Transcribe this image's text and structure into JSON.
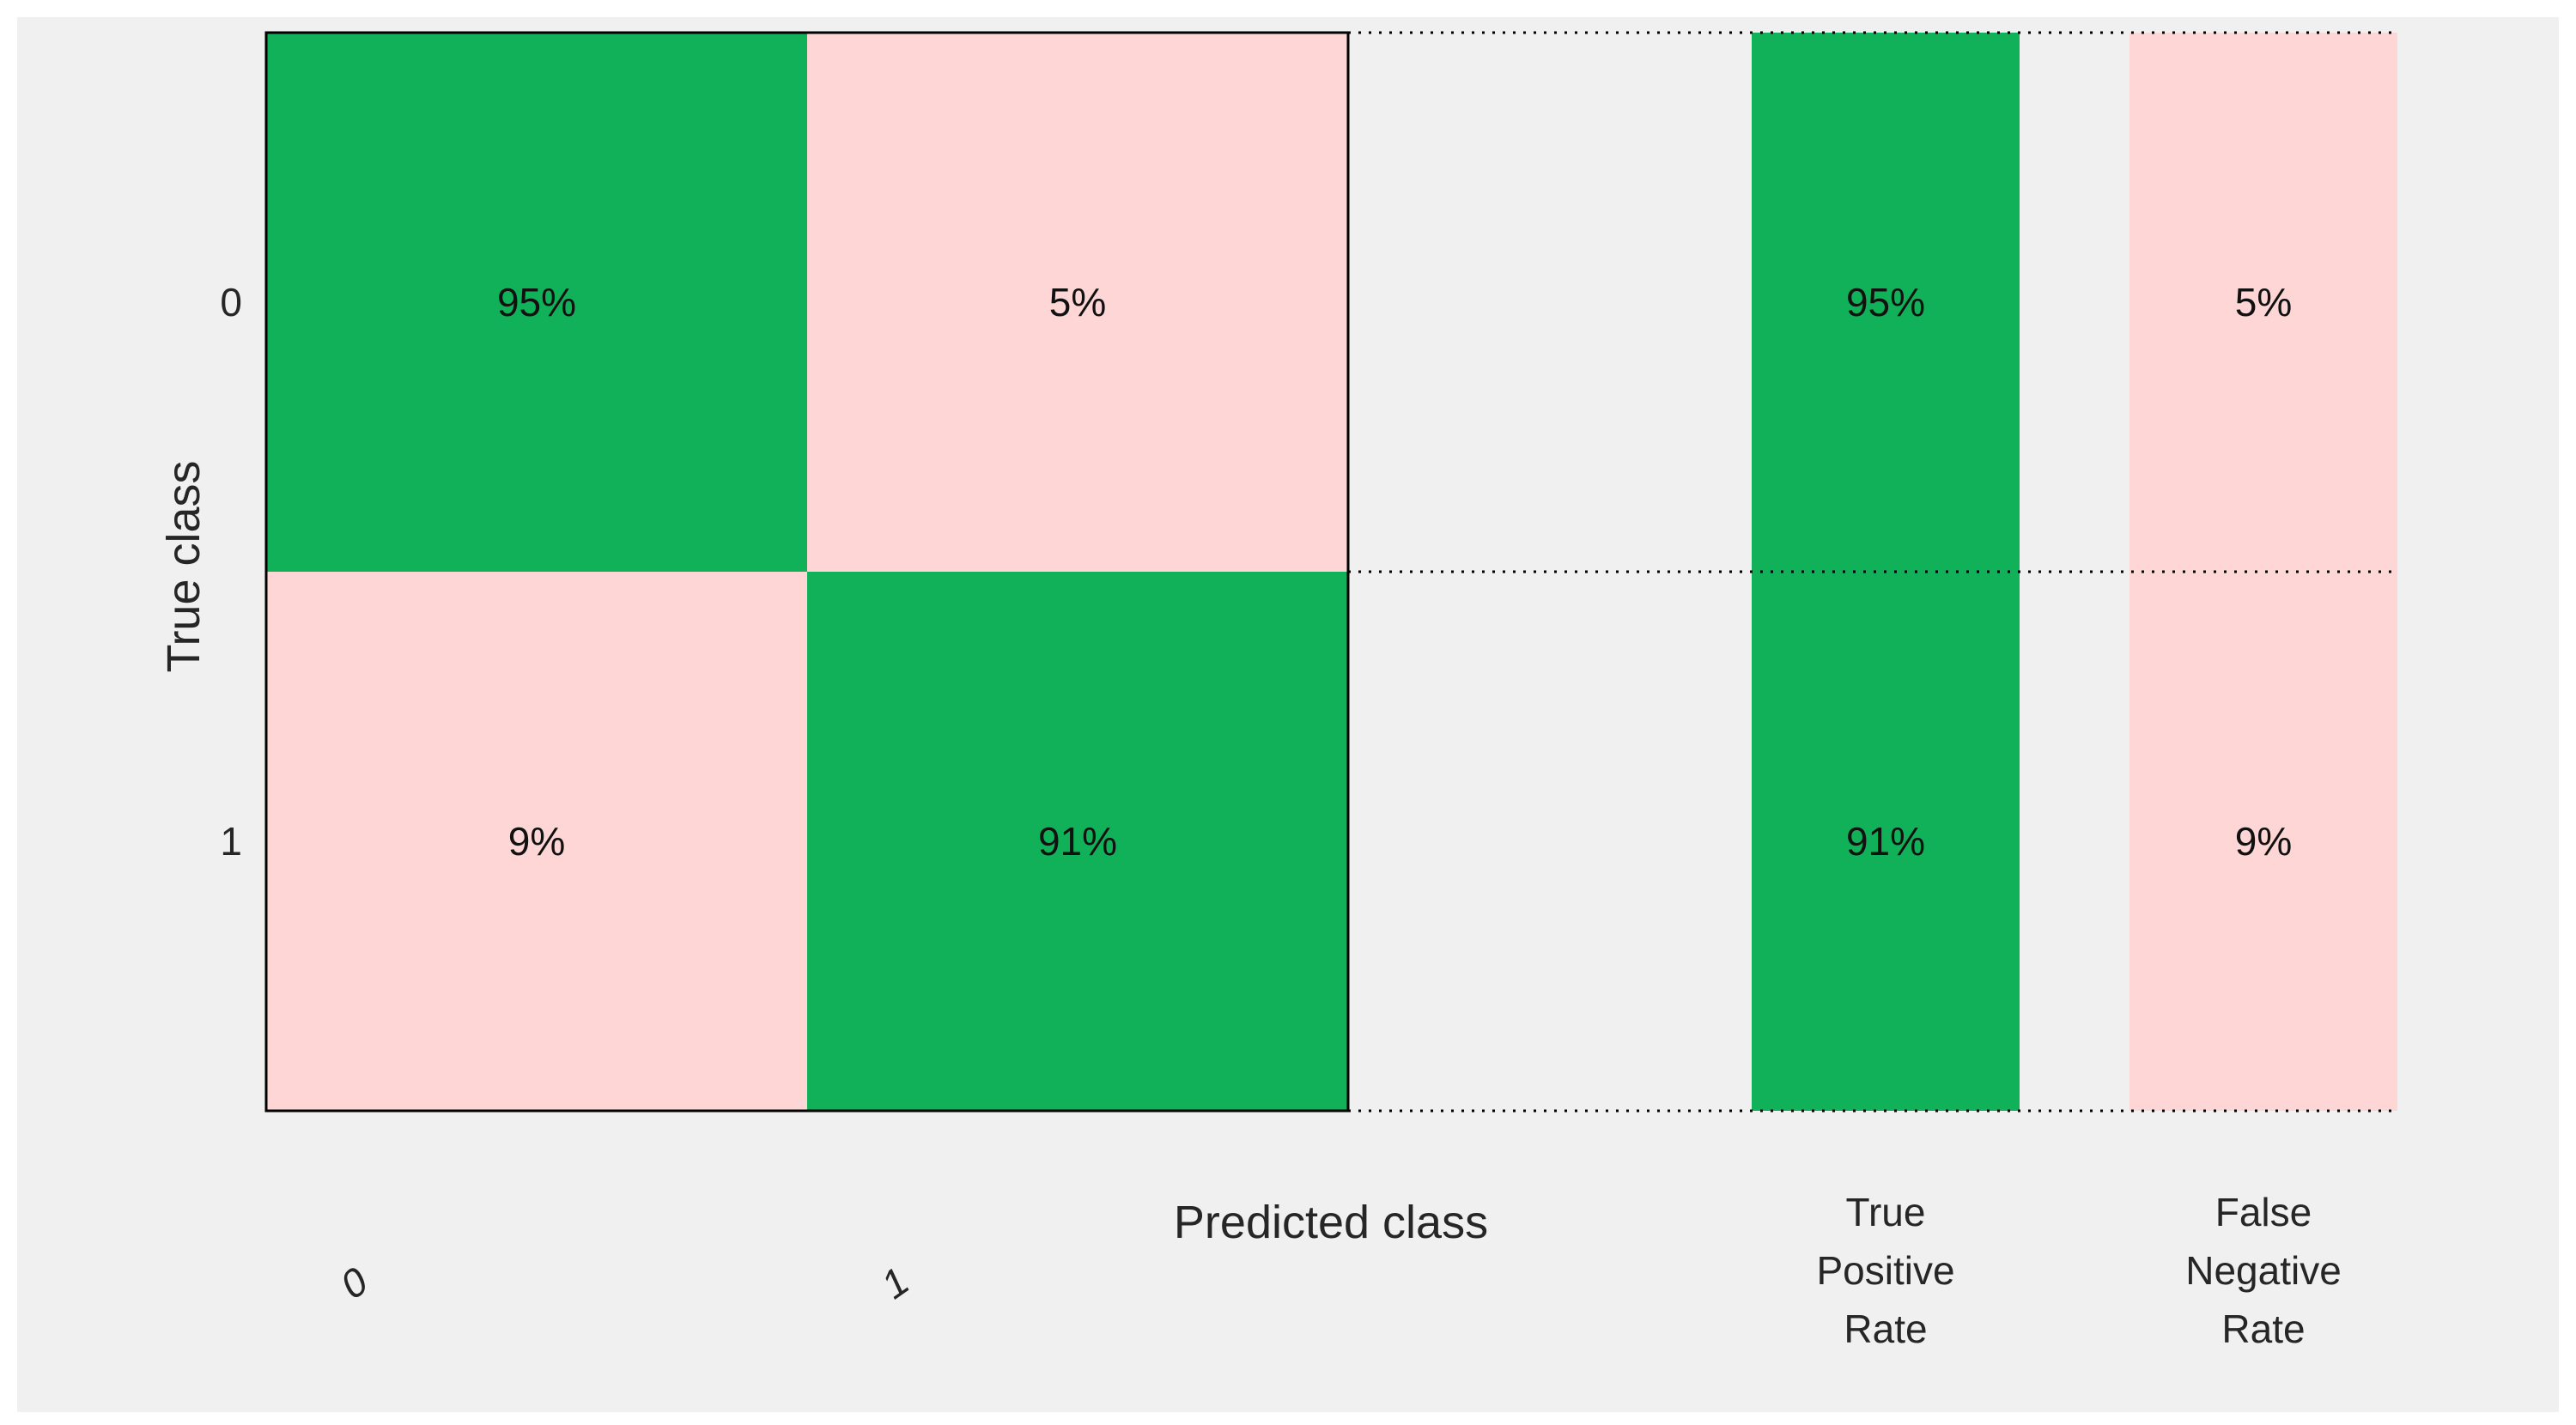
{
  "chart_data": {
    "type": "heatmap",
    "title": "",
    "xlabel": "Predicted class",
    "ylabel": "True class",
    "x_categories": [
      "0",
      "1"
    ],
    "y_categories": [
      "0",
      "1"
    ],
    "matrix": [
      [
        95,
        5
      ],
      [
        9,
        91
      ]
    ],
    "matrix_labels": [
      [
        "95%",
        "5%"
      ],
      [
        "9%",
        "91%"
      ]
    ],
    "summary_columns": [
      {
        "name": "True Positive Rate",
        "label_lines": [
          "True",
          "Positive",
          "Rate"
        ],
        "values": [
          95,
          91
        ],
        "labels": [
          "95%",
          "91%"
        ]
      },
      {
        "name": "False Negative Rate",
        "label_lines": [
          "False",
          "Negative",
          "Rate"
        ],
        "values": [
          5,
          9
        ],
        "labels": [
          "5%",
          "9%"
        ]
      }
    ],
    "colors": {
      "correct": "#10b158",
      "incorrect": "#fed6d6",
      "background": "#f0f0f0",
      "border": "#000000"
    }
  }
}
